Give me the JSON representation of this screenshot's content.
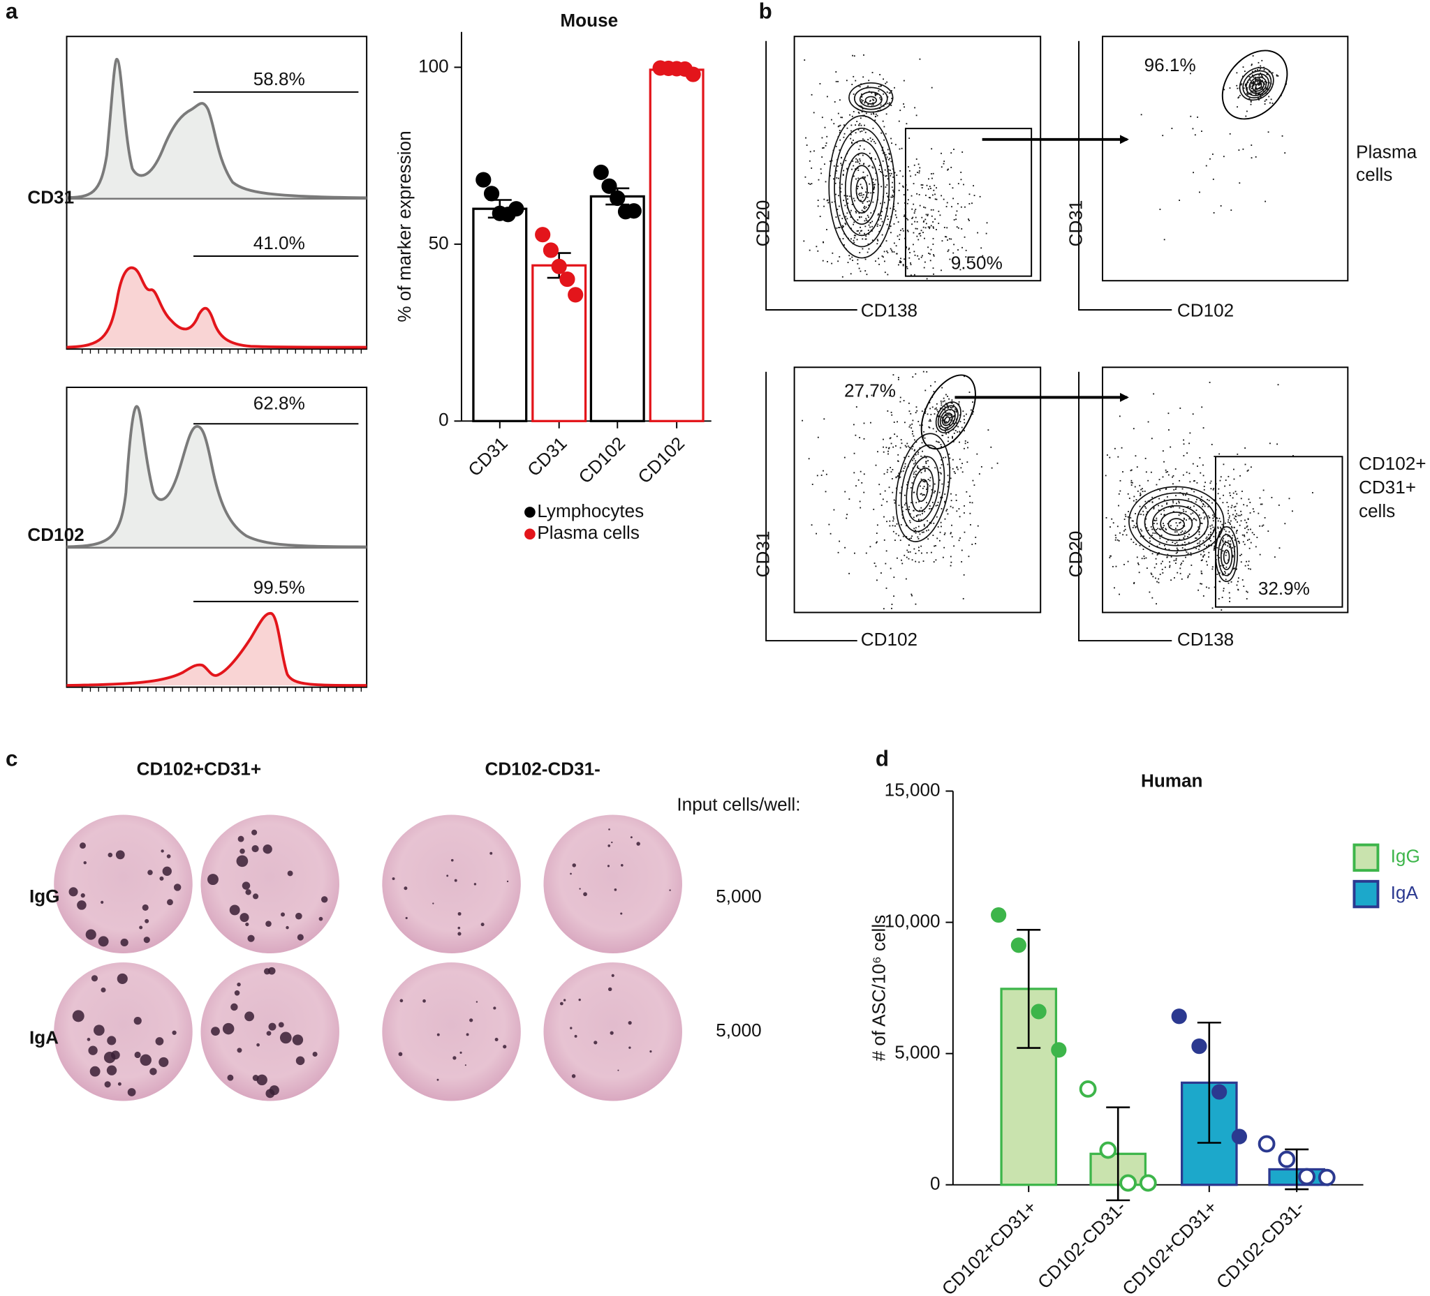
{
  "panel_labels": [
    "a",
    "b",
    "c",
    "d"
  ],
  "histograms": {
    "rows": [
      {
        "label": "CD31",
        "gates": [
          "58.8%",
          "41.0%"
        ]
      },
      {
        "label": "CD102",
        "gates": [
          "62.8%",
          "99.5%"
        ]
      }
    ]
  },
  "flow": {
    "plots": [
      {
        "x_label": "CD138",
        "y_label": "CD20",
        "gate": "9.50%"
      },
      {
        "x_label": "CD102",
        "y_label": "CD31",
        "gate": "96.1%",
        "population": [
          "Plasma",
          "cells"
        ]
      },
      {
        "x_label": "CD102",
        "y_label": "CD31",
        "gate": "27.7%"
      },
      {
        "x_label": "CD138",
        "y_label": "CD20",
        "gate": "32.9%",
        "population": [
          "CD102+",
          "CD31+",
          "cells"
        ]
      }
    ]
  },
  "elispot": {
    "columns": [
      "CD102+CD31+",
      "CD102-CD31-"
    ],
    "input_header": "Input cells/well:",
    "rows": [
      {
        "label": "IgG",
        "input": "5,000"
      },
      {
        "label": "IgA",
        "input": "5,000"
      }
    ]
  },
  "chart_data": [
    {
      "type": "bar",
      "title": "Mouse",
      "y_label": "% of marker expression",
      "categories": [
        "CD31",
        "CD31",
        "CD102",
        "CD102"
      ],
      "ylim": [
        0,
        110
      ],
      "yticks": [
        0,
        50,
        100
      ],
      "legend": "bottom",
      "series": [
        {
          "name": "Lymphocytes",
          "color": "#000000",
          "fill": "#ffffff",
          "values": [
            60,
            null,
            63.5,
            null
          ],
          "errors": [
            2.5,
            null,
            2.3,
            null
          ],
          "points": [
            [
              68.2,
              64.3,
              58.7,
              58.4,
              60.0
            ],
            null,
            [
              70.3,
              66.4,
              63.0,
              59.2,
              59.4
            ],
            null
          ]
        },
        {
          "name": "Plasma cells",
          "color": "#e3151b",
          "fill": "#ffffff",
          "values": [
            null,
            44,
            null,
            99.3
          ],
          "errors": [
            null,
            3.5,
            null,
            0.3
          ],
          "points": [
            null,
            [
              52.7,
              48.3,
              43.7,
              40.1,
              35.7
            ],
            null,
            [
              99.8,
              99.7,
              99.6,
              99.5,
              98.0
            ]
          ]
        }
      ],
      "marker_fill": [
        "filled",
        "filled",
        "filled",
        "filled"
      ]
    },
    {
      "type": "bar",
      "title": "Human",
      "y_label": "# of ASC/10⁶ cells",
      "categories": [
        "CD102+CD31+",
        "CD102-CD31-",
        "CD102+CD31+",
        "CD102-CD31-"
      ],
      "ylim": [
        0,
        15000
      ],
      "yticks": [
        0,
        {
          "value": 5000,
          "label": "5,000"
        },
        {
          "value": 10000,
          "label": "10,000"
        },
        {
          "value": 15000,
          "label": "15,000"
        }
      ],
      "legend": "right",
      "series": [
        {
          "name": "IgG",
          "color": "#3db54a",
          "fill": "#c9e3ae",
          "values": [
            7465,
            1180,
            null,
            null
          ],
          "errors": [
            2250,
            1770,
            null,
            null
          ],
          "points": [
            [
              10280,
              9130,
              6600,
              5140
            ],
            [
              3650,
              1320,
              70,
              70
            ],
            null,
            null
          ]
        },
        {
          "name": "IgA",
          "color": "#2b3990",
          "fill": "#1ca8cb",
          "values": [
            null,
            null,
            3890,
            590
          ],
          "errors": [
            null,
            null,
            2290,
            760
          ],
          "points": [
            null,
            null,
            [
              6420,
              5280,
              3540,
              1840
            ],
            [
              1560,
              970,
              310,
              280
            ]
          ]
        }
      ],
      "marker_fill": [
        "filled",
        "open",
        "filled",
        "open"
      ]
    }
  ]
}
